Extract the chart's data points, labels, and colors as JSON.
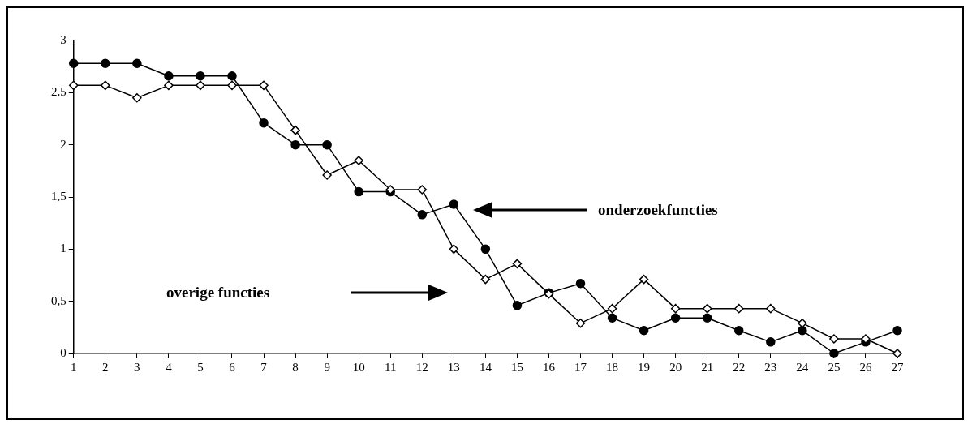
{
  "chart_data": {
    "type": "line",
    "x": [
      1,
      2,
      3,
      4,
      5,
      6,
      7,
      8,
      9,
      10,
      11,
      12,
      13,
      14,
      15,
      16,
      17,
      18,
      19,
      20,
      21,
      22,
      23,
      24,
      25,
      26,
      27
    ],
    "series": [
      {
        "color": "#000000",
        "marker": "circle",
        "values": [
          2.78,
          2.78,
          2.78,
          2.66,
          2.66,
          2.66,
          2.21,
          2.0,
          2.0,
          1.55,
          1.55,
          1.33,
          1.43,
          1.0,
          0.46,
          0.58,
          0.67,
          0.34,
          0.22,
          0.34,
          0.34,
          0.22,
          0.11,
          0.22,
          0,
          0.11,
          0.22
        ]
      },
      {
        "color": "#000000",
        "marker": "diamond",
        "values": [
          2.57,
          2.57,
          2.45,
          2.57,
          2.57,
          2.57,
          2.57,
          2.14,
          1.71,
          1.85,
          1.57,
          1.57,
          1.0,
          0.71,
          0.86,
          0.57,
          0.29,
          0.43,
          0.71,
          0.43,
          0.43,
          0.43,
          0.43,
          0.29,
          0.14,
          0.14,
          0
        ]
      }
    ],
    "xlim": [
      1,
      27
    ],
    "xticks": [
      1,
      2,
      3,
      4,
      5,
      6,
      7,
      8,
      9,
      10,
      11,
      12,
      13,
      14,
      15,
      16,
      17,
      18,
      19,
      20,
      21,
      22,
      23,
      24,
      25,
      26,
      27
    ],
    "ylim": [
      0,
      3
    ],
    "yticks": [
      0,
      {
        "value": 0.5,
        "label": "0,5"
      },
      1,
      {
        "value": 1.5,
        "label": "1,5"
      },
      2,
      {
        "value": 2.5,
        "label": "2,5"
      },
      3
    ],
    "grid": false,
    "legend": false,
    "annotations": [
      "onderzoekfuncties",
      "overige functies"
    ]
  }
}
